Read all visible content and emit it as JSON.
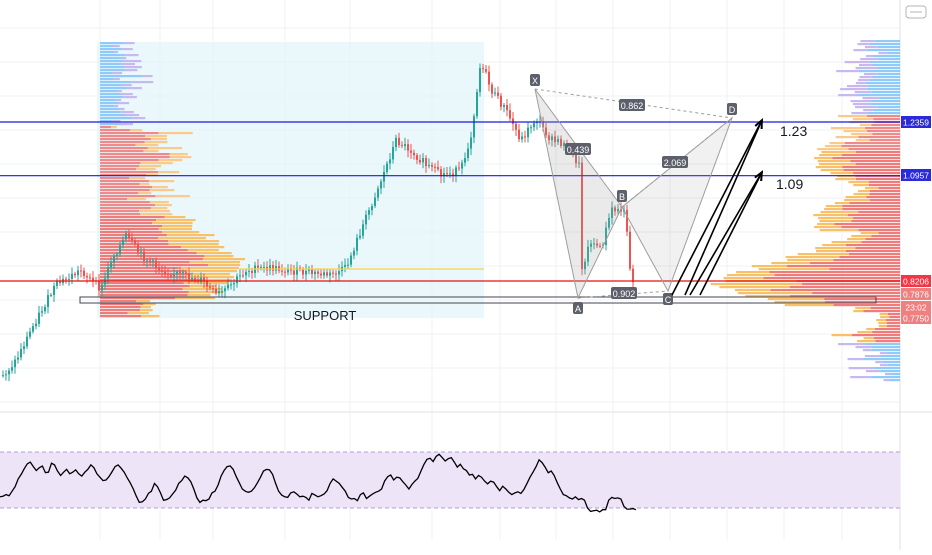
{
  "chart_data": {
    "type": "candlestick",
    "y_axis_labels": [
      {
        "text": "1.2359",
        "value": 1.2359,
        "color": "#2a2ad8"
      },
      {
        "text": "1.0957",
        "value": 1.0957,
        "color": "#2a2ad8"
      },
      {
        "text": "0.8206",
        "value": 0.8206,
        "color": "#f23645"
      },
      {
        "text": "0.7876",
        "value": 0.7876,
        "color": "#f08080"
      },
      {
        "text": "23:02",
        "value": null,
        "color": "#f08080"
      },
      {
        "text": "0.7750",
        "value": 0.775,
        "color": "#f08080"
      }
    ],
    "horizontal_levels": [
      {
        "price": 1.2359,
        "color": "#1a1adb"
      },
      {
        "price": 1.0957,
        "color": "#1a1adb"
      },
      {
        "price": 0.8206,
        "color": "#e81010"
      }
    ],
    "support_label": "SUPPORT",
    "harmonic_pattern": {
      "points": [
        {
          "label": "X",
          "price": 1.41
        },
        {
          "label": "A",
          "price": 0.78
        },
        {
          "label": "B",
          "price": 1.06
        },
        {
          "label": "C",
          "price": 0.78
        },
        {
          "label": "D",
          "price": 1.255
        }
      ],
      "ratios": [
        "0.862",
        "0.439",
        "2.069",
        "0.902"
      ]
    },
    "targets": [
      {
        "label": "1.23",
        "price": 1.23
      },
      {
        "label": "1.09",
        "price": 1.09
      }
    ],
    "rsi": {
      "values": [
        20,
        21,
        24,
        22,
        30,
        38,
        52,
        60,
        70,
        79,
        82,
        74,
        67,
        72,
        75,
        63,
        64,
        80,
        77,
        66,
        58,
        64,
        69,
        61,
        64,
        68,
        61,
        57,
        64,
        69,
        77,
        72,
        61,
        55,
        49,
        50,
        56,
        65,
        74,
        77,
        71,
        64,
        54,
        45,
        34,
        21,
        10,
        11,
        16,
        26,
        30,
        44,
        38,
        27,
        14,
        15,
        18,
        25,
        32,
        44,
        49,
        57,
        54,
        47,
        34,
        18,
        10,
        14,
        13,
        16,
        27,
        30,
        41,
        57,
        67,
        74,
        75,
        69,
        56,
        45,
        34,
        30,
        28,
        30,
        36,
        45,
        55,
        66,
        69,
        68,
        60,
        44,
        30,
        23,
        20,
        19,
        27,
        29,
        25,
        20,
        21,
        19,
        14,
        26,
        23,
        20,
        22,
        25,
        31,
        44,
        52,
        48,
        44,
        37,
        30,
        19,
        16,
        17,
        13,
        24,
        27,
        17,
        21,
        25,
        28,
        30,
        34,
        48,
        56,
        59,
        50,
        55,
        54,
        47,
        41,
        34,
        42,
        48,
        53,
        66,
        78,
        87,
        89,
        83,
        92,
        96,
        90,
        84,
        88,
        90,
        82,
        73,
        78,
        70,
        67,
        59,
        60,
        52,
        58,
        55,
        48,
        43,
        48,
        46,
        38,
        31,
        39,
        34,
        28,
        24,
        27,
        29,
        26,
        33,
        44,
        55,
        64,
        74,
        86,
        81,
        73,
        63,
        66,
        58,
        45,
        34,
        24,
        22,
        18,
        16,
        20,
        15,
        17,
        14,
        0,
        -6,
        -5,
        -4,
        -7,
        -3,
        -3,
        14,
        19,
        17,
        18,
        16,
        3,
        -2,
        -2,
        -1,
        -3
      ]
    }
  }
}
